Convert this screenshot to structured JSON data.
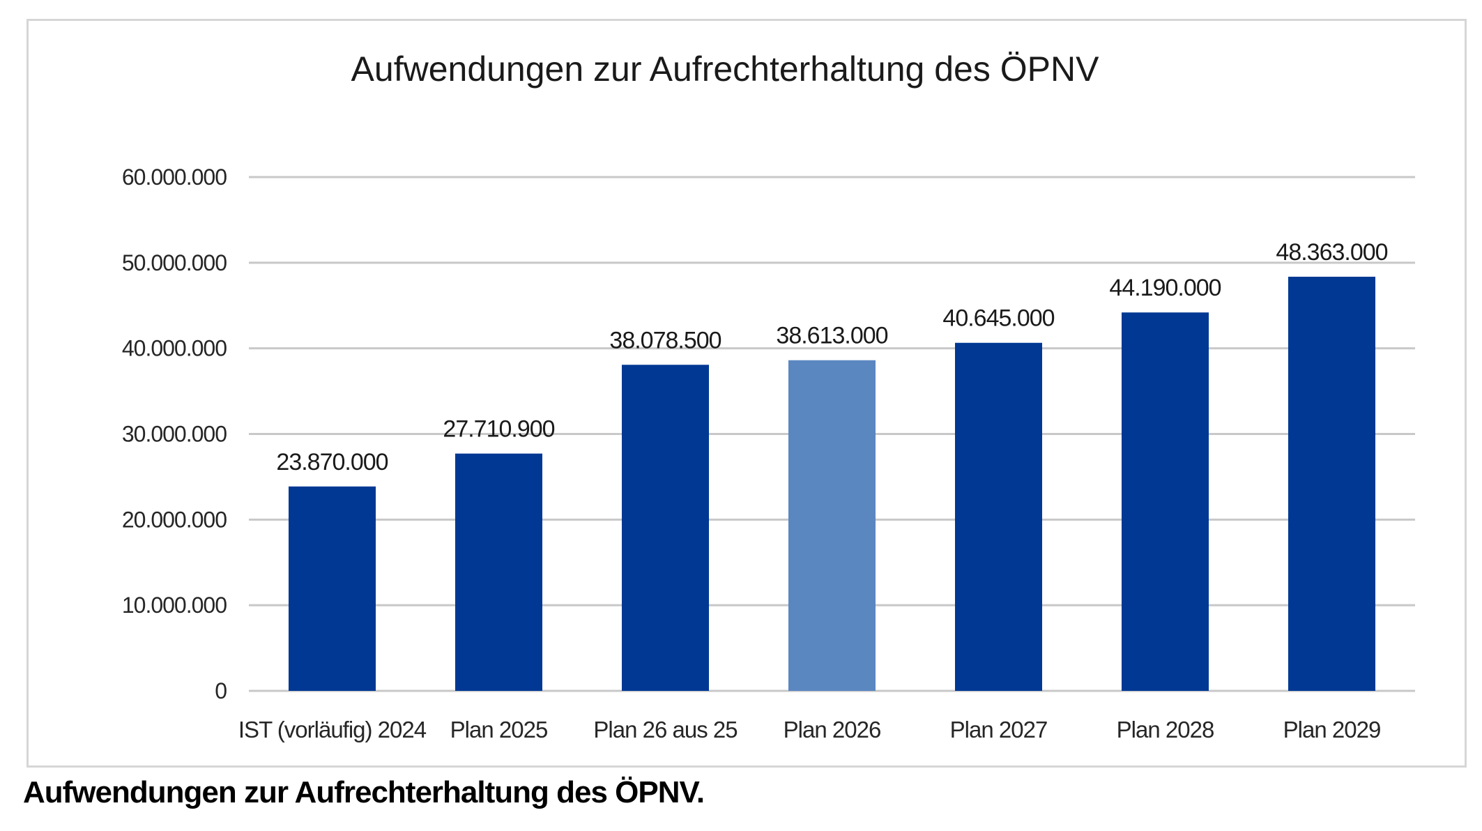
{
  "caption": "Aufwendungen zur Aufrechterhaltung des ÖPNV.",
  "colors": {
    "primary_bar": "#003893",
    "highlight_bar": "#5B87C1",
    "grid": "#c8c8c8",
    "text": "#262626"
  },
  "chart_data": {
    "type": "bar",
    "title": "Aufwendungen zur Aufrechterhaltung des ÖPNV",
    "xlabel": "",
    "ylabel": "",
    "categories": [
      "IST (vorläufig) 2024",
      "Plan 2025",
      "Plan 26 aus 25",
      "Plan 2026",
      "Plan 2027",
      "Plan 2028",
      "Plan 2029"
    ],
    "values": [
      23870000,
      27710900,
      38078500,
      38613000,
      40645000,
      44190000,
      48363000
    ],
    "data_labels": [
      "23.870.000",
      "27.710.900",
      "38.078.500",
      "38.613.000",
      "40.645.000",
      "44.190.000",
      "48.363.000"
    ],
    "highlighted_category": "Plan 2026",
    "ylim": [
      0,
      60000000
    ],
    "yticks": [
      0,
      10000000,
      20000000,
      30000000,
      40000000,
      50000000,
      60000000
    ],
    "ytick_labels": [
      "0",
      "10.000.000",
      "20.000.000",
      "30.000.000",
      "40.000.000",
      "50.000.000",
      "60.000.000"
    ],
    "grid": true,
    "legend": "none"
  }
}
